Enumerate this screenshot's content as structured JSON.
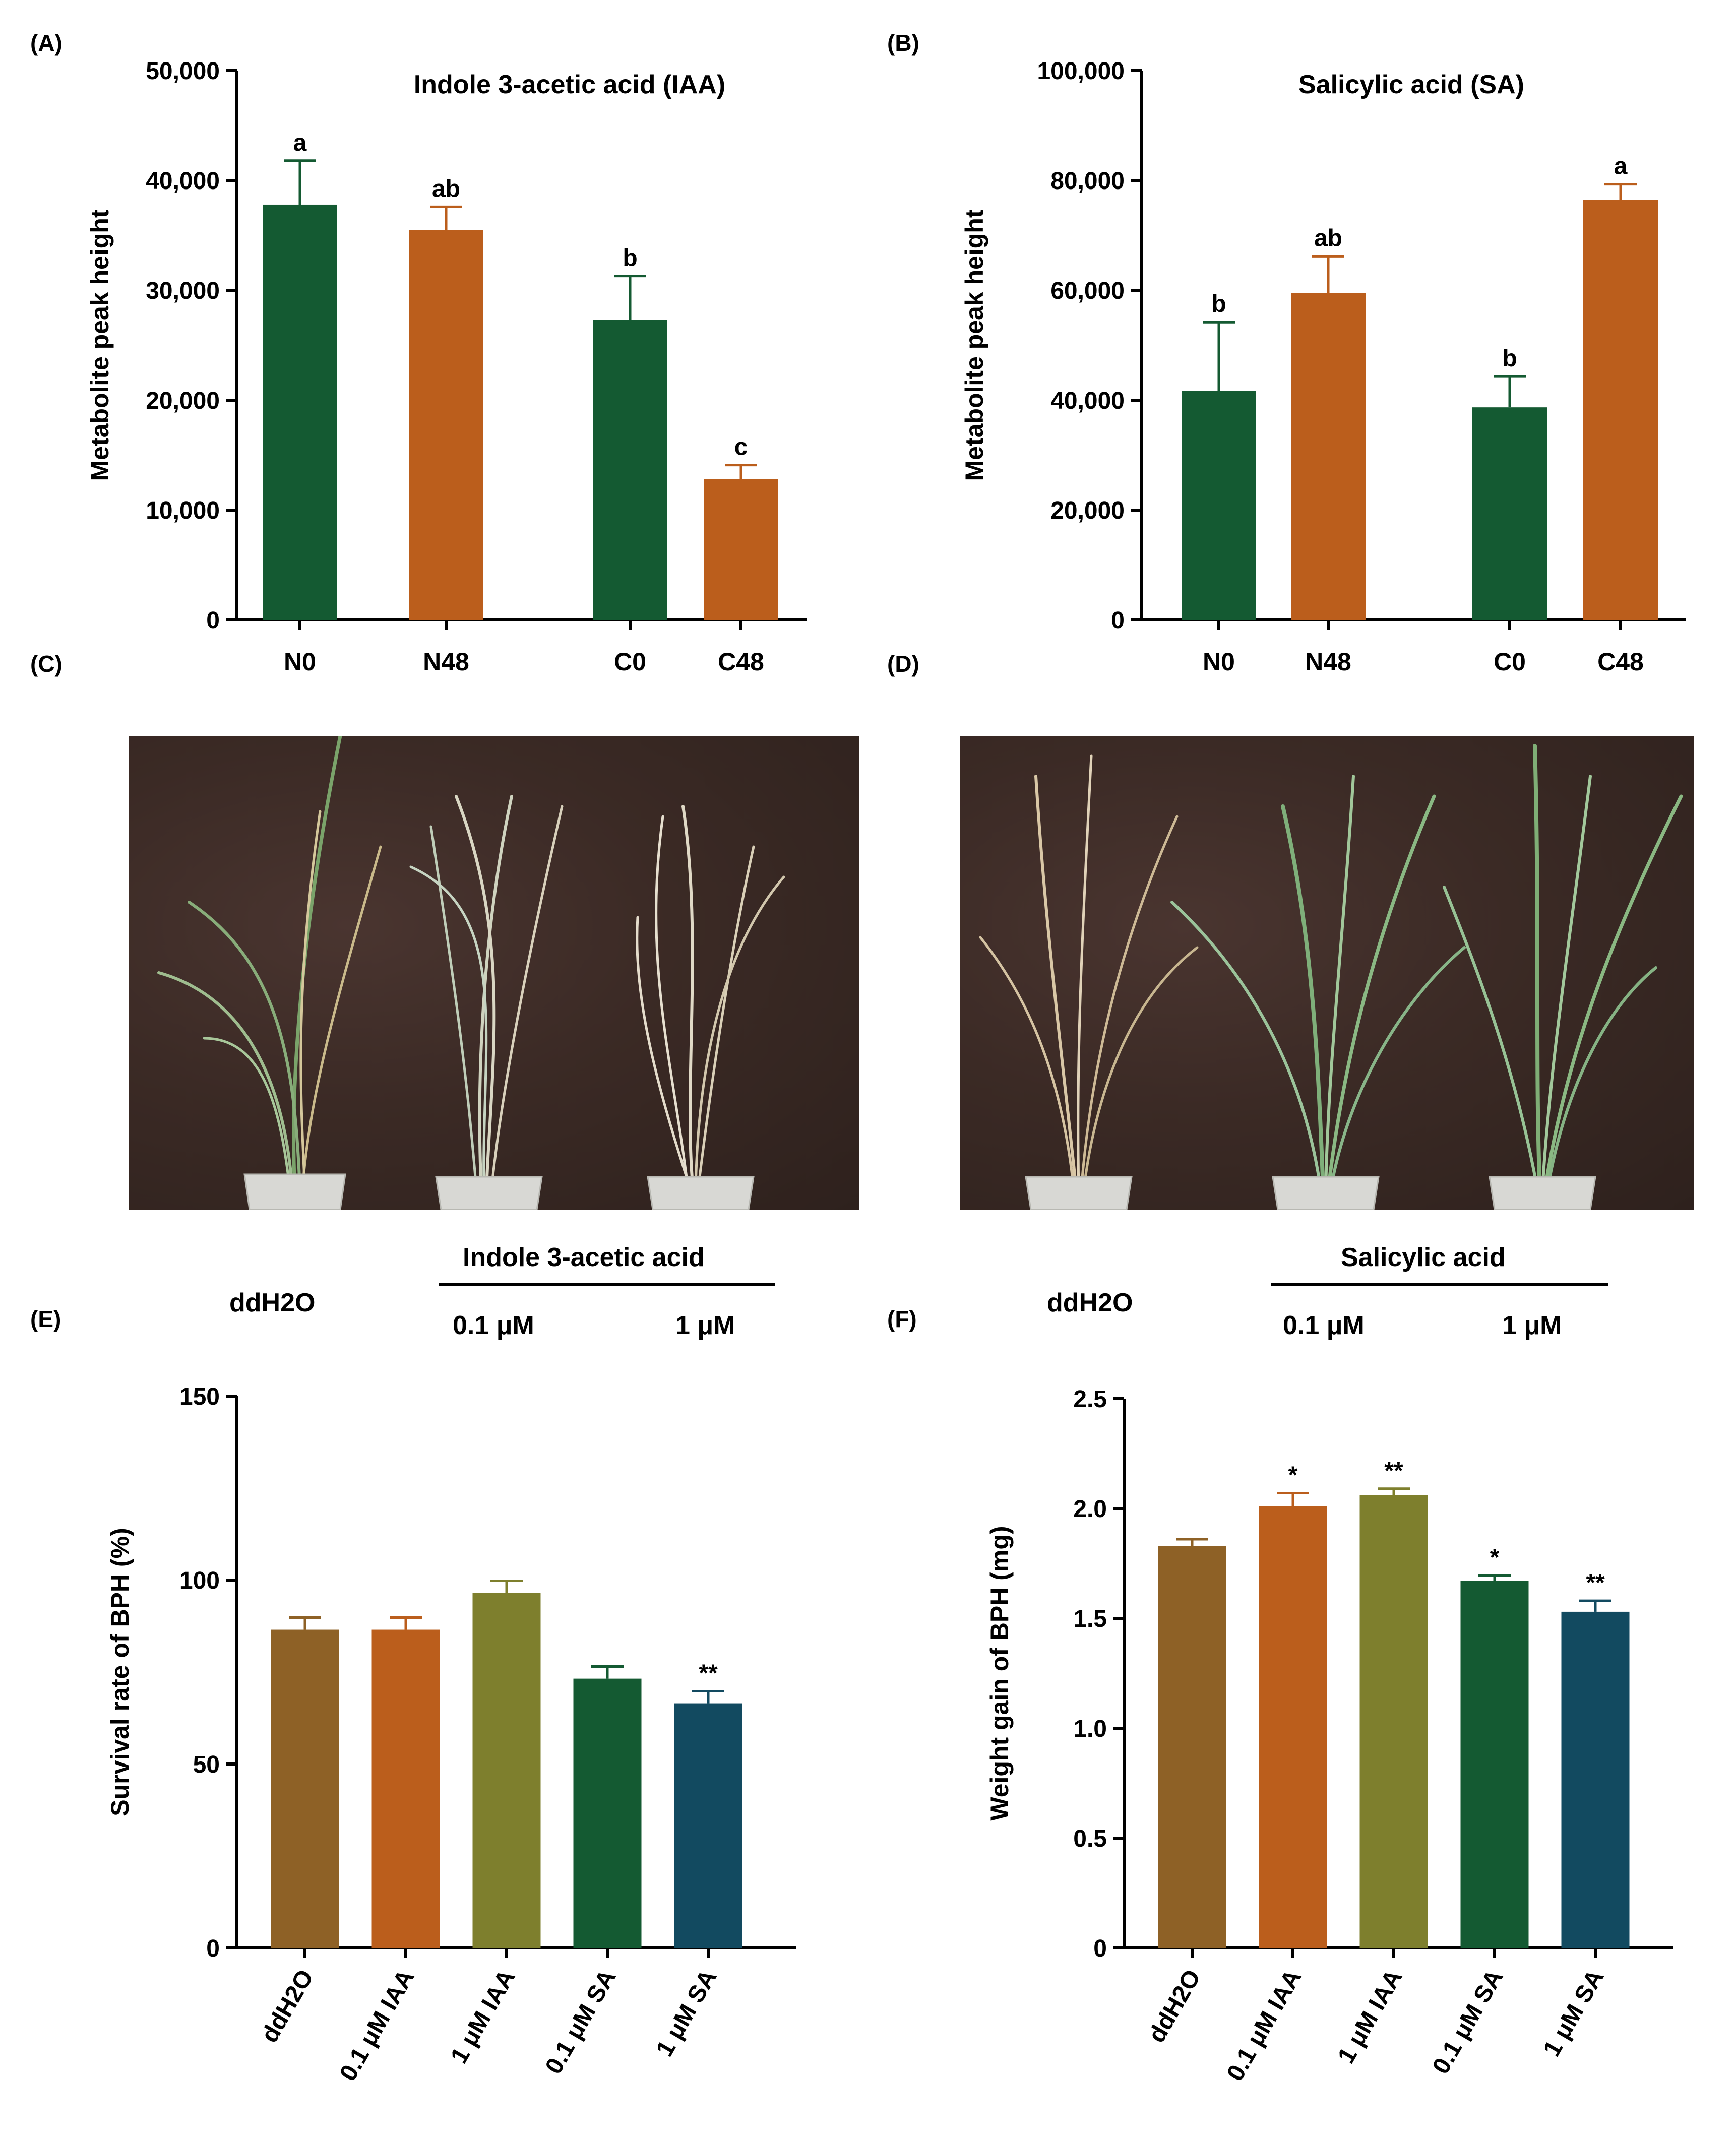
{
  "panel_labels": [
    "(A)",
    "(B)",
    "(C)",
    "(D)",
    "(E)",
    "(F)"
  ],
  "chart_data": [
    {
      "id": "A",
      "type": "bar",
      "title": "Indole 3-acetic acid  (IAA)",
      "ylabel": "Metabolite peak height",
      "xlabel": "",
      "categories": [
        "N0",
        "N48",
        "C0",
        "C48"
      ],
      "values": [
        37800,
        35500,
        27300,
        12800
      ],
      "errors": [
        4000,
        2100,
        4000,
        1300
      ],
      "sig": [
        "a",
        "ab",
        "b",
        "c"
      ],
      "colors": [
        "#145a32",
        "#bb5e1c",
        "#145a32",
        "#bb5e1c"
      ],
      "ylim": [
        0,
        50000
      ],
      "yticks": [
        0,
        10000,
        20000,
        30000,
        40000,
        50000
      ],
      "ytick_labels": [
        "0",
        "10,000",
        "20,000",
        "30,000",
        "40,000",
        "50,000"
      ]
    },
    {
      "id": "B",
      "type": "bar",
      "title": "Salicylic acid (SA)",
      "ylabel": "Metabolite peak height",
      "xlabel": "",
      "categories": [
        "N0",
        "N48",
        "C0",
        "C48"
      ],
      "values": [
        41700,
        59500,
        38700,
        76500
      ],
      "errors": [
        12500,
        6700,
        5600,
        2800
      ],
      "sig": [
        "b",
        "ab",
        "b",
        "a"
      ],
      "colors": [
        "#145a32",
        "#bb5e1c",
        "#145a32",
        "#bb5e1c"
      ],
      "ylim": [
        0,
        100000
      ],
      "yticks": [
        0,
        20000,
        40000,
        60000,
        80000,
        100000
      ],
      "ytick_labels": [
        "0",
        "20,000",
        "40,000",
        "60,000",
        "80,000",
        "100,000"
      ]
    },
    {
      "id": "E",
      "type": "bar",
      "title": "",
      "ylabel": "Survival rate of BPH (%)",
      "xlabel": "",
      "categories": [
        "ddH2O",
        "0.1 μM IAA",
        "1 μM IAA",
        "0.1 μM SA",
        "1 μM SA"
      ],
      "values": [
        86.5,
        86.5,
        96.5,
        73.2,
        66.5
      ],
      "errors": [
        3.3,
        3.3,
        3.3,
        3.3,
        3.3
      ],
      "sig": [
        "",
        "",
        "",
        "",
        "**"
      ],
      "colors": [
        "#8e6126",
        "#bb5e1c",
        "#7e7f2d",
        "#145a32",
        "#124a60"
      ],
      "ylim": [
        0,
        150
      ],
      "yticks": [
        0,
        50,
        100,
        150
      ],
      "ytick_labels": [
        "0",
        "50",
        "100",
        "150"
      ]
    },
    {
      "id": "F",
      "type": "bar",
      "title": "",
      "ylabel": "Weight gain of BPH (mg)",
      "xlabel": "",
      "categories": [
        "ddH2O",
        "0.1 μM IAA",
        "1 μM IAA",
        "0.1 μM SA",
        "1 μM SA"
      ],
      "values": [
        1.83,
        2.01,
        2.06,
        1.67,
        1.53
      ],
      "errors": [
        0.03,
        0.06,
        0.03,
        0.025,
        0.05
      ],
      "sig": [
        "",
        "*",
        "**",
        "*",
        "**"
      ],
      "colors": [
        "#8e6126",
        "#bb5e1c",
        "#7e7f2d",
        "#145a32",
        "#124a60"
      ],
      "ylim": [
        0,
        2.5
      ],
      "yticks": [
        0,
        0.5,
        1.0,
        1.5,
        2.0,
        2.5
      ],
      "ytick_labels": [
        "0",
        "0.5",
        "1.0",
        "1.5",
        "2.0",
        "2.5"
      ]
    }
  ],
  "photo_C": {
    "control_label": "ddH2O",
    "treatment_label": "Indole 3-acetic acid",
    "dose_labels": [
      "0.1 μM",
      "1 μM"
    ]
  },
  "photo_D": {
    "control_label": "ddH2O",
    "treatment_label": "Salicylic acid",
    "dose_labels": [
      "0.1 μM",
      "1 μM"
    ]
  }
}
